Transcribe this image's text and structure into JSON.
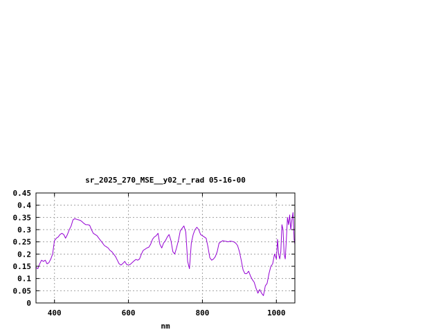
{
  "chart_data": {
    "type": "line",
    "title": "sr_2025_270_MSE__y02_r_rad 05-16-00",
    "xlabel": "nm",
    "ylabel": "",
    "xlim": [
      350,
      1050
    ],
    "ylim": [
      0,
      0.45
    ],
    "xticks": [
      400,
      600,
      800,
      1000
    ],
    "yticks": [
      0,
      0.05,
      0.1,
      0.15,
      0.2,
      0.25,
      0.3,
      0.35,
      0.4,
      0.45
    ],
    "xtick_labels": [
      "400",
      "600",
      "800",
      "1000"
    ],
    "ytick_labels": [
      "0",
      "0.05",
      "0.1",
      "0.15",
      "0.2",
      "0.25",
      "0.3",
      "0.35",
      "0.4",
      "0.45"
    ],
    "grid": true,
    "legend": "none",
    "series_color": "#9400d3",
    "series": [
      {
        "x": [
          350,
          355,
          360,
          365,
          370,
          375,
          380,
          385,
          390,
          395,
          400,
          405,
          410,
          415,
          420,
          425,
          430,
          435,
          440,
          445,
          450,
          455,
          460,
          465,
          470,
          475,
          480,
          485,
          490,
          495,
          500,
          505,
          510,
          515,
          520,
          525,
          530,
          535,
          540,
          545,
          550,
          555,
          560,
          565,
          570,
          575,
          580,
          585,
          590,
          595,
          600,
          605,
          610,
          615,
          620,
          625,
          630,
          635,
          640,
          645,
          650,
          655,
          660,
          665,
          670,
          675,
          680,
          685,
          690,
          695,
          700,
          705,
          710,
          715,
          720,
          725,
          730,
          735,
          740,
          745,
          750,
          755,
          760,
          765,
          770,
          775,
          780,
          785,
          790,
          795,
          800,
          805,
          810,
          815,
          820,
          825,
          830,
          835,
          840,
          845,
          850,
          855,
          860,
          865,
          870,
          875,
          880,
          885,
          890,
          895,
          900,
          905,
          910,
          915,
          920,
          925,
          930,
          935,
          940,
          945,
          950,
          955,
          960,
          965,
          970,
          975,
          980,
          985,
          990,
          995,
          1000,
          1003,
          1006,
          1009,
          1012,
          1015,
          1018,
          1021,
          1024,
          1027,
          1030,
          1033,
          1036,
          1039,
          1042,
          1045,
          1048,
          1050
        ],
        "y": [
          0.145,
          0.14,
          0.16,
          0.175,
          0.17,
          0.175,
          0.16,
          0.165,
          0.18,
          0.2,
          0.255,
          0.265,
          0.27,
          0.28,
          0.285,
          0.28,
          0.265,
          0.28,
          0.3,
          0.315,
          0.34,
          0.345,
          0.342,
          0.34,
          0.338,
          0.332,
          0.325,
          0.32,
          0.32,
          0.318,
          0.3,
          0.285,
          0.28,
          0.275,
          0.265,
          0.255,
          0.245,
          0.235,
          0.23,
          0.225,
          0.215,
          0.21,
          0.2,
          0.19,
          0.175,
          0.16,
          0.155,
          0.162,
          0.17,
          0.158,
          0.155,
          0.158,
          0.165,
          0.172,
          0.178,
          0.175,
          0.18,
          0.2,
          0.215,
          0.22,
          0.225,
          0.228,
          0.24,
          0.26,
          0.27,
          0.275,
          0.285,
          0.24,
          0.225,
          0.245,
          0.255,
          0.27,
          0.28,
          0.255,
          0.21,
          0.2,
          0.225,
          0.255,
          0.295,
          0.305,
          0.315,
          0.29,
          0.17,
          0.14,
          0.245,
          0.28,
          0.3,
          0.31,
          0.3,
          0.28,
          0.275,
          0.27,
          0.265,
          0.23,
          0.185,
          0.175,
          0.18,
          0.19,
          0.21,
          0.245,
          0.25,
          0.255,
          0.253,
          0.252,
          0.25,
          0.253,
          0.252,
          0.25,
          0.245,
          0.235,
          0.21,
          0.175,
          0.135,
          0.12,
          0.12,
          0.13,
          0.11,
          0.095,
          0.085,
          0.06,
          0.04,
          0.055,
          0.04,
          0.03,
          0.07,
          0.08,
          0.12,
          0.15,
          0.16,
          0.2,
          0.18,
          0.26,
          0.2,
          0.18,
          0.21,
          0.32,
          0.3,
          0.2,
          0.18,
          0.26,
          0.35,
          0.32,
          0.36,
          0.3,
          0.34,
          0.37,
          0.26,
          0.24
        ]
      }
    ]
  }
}
